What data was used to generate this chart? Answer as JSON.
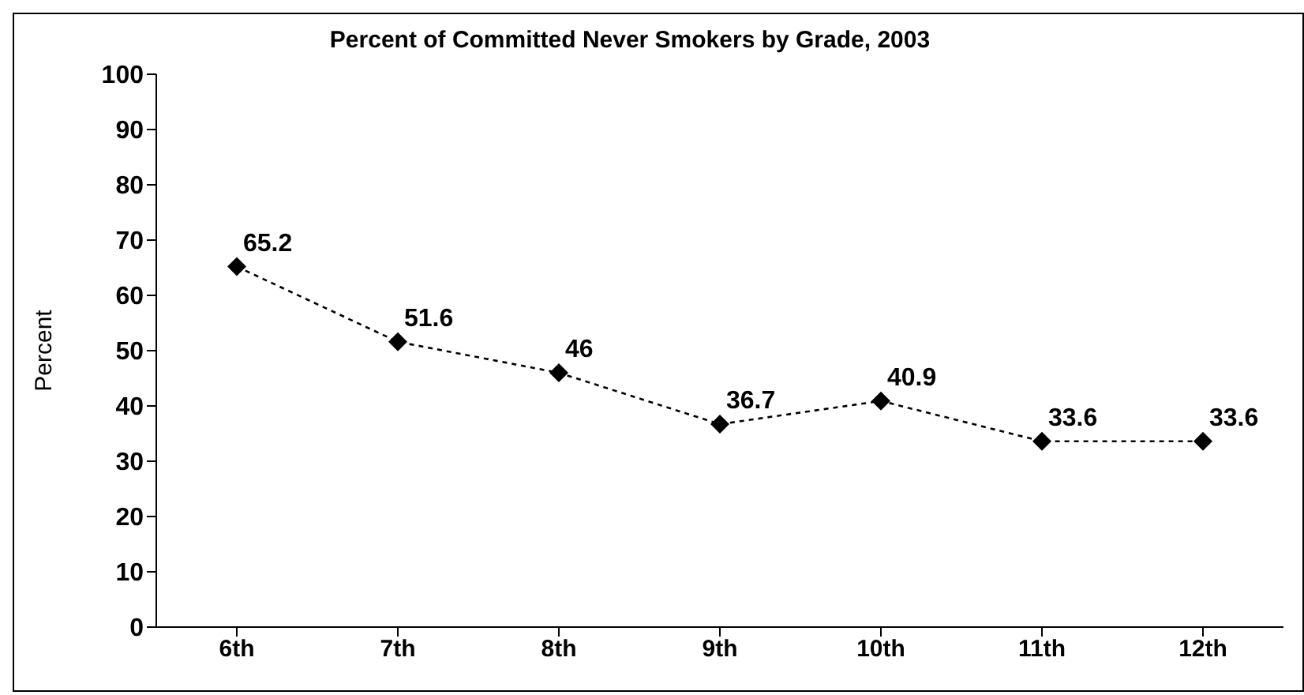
{
  "chart_data": {
    "type": "line",
    "title": "Percent of Committed Never Smokers by Grade, 2003",
    "ylabel": "Percent",
    "categories": [
      "6th",
      "7th",
      "8th",
      "9th",
      "10th",
      "11th",
      "12th"
    ],
    "values": [
      65.2,
      51.6,
      46,
      36.7,
      40.9,
      33.6,
      33.6
    ],
    "color": "#000000",
    "ylim": [
      0,
      100
    ],
    "yticks": [
      0,
      10,
      20,
      30,
      40,
      50,
      60,
      70,
      80,
      90,
      100
    ],
    "marker": "diamond",
    "line_style": "dotted",
    "data_labels": true
  }
}
